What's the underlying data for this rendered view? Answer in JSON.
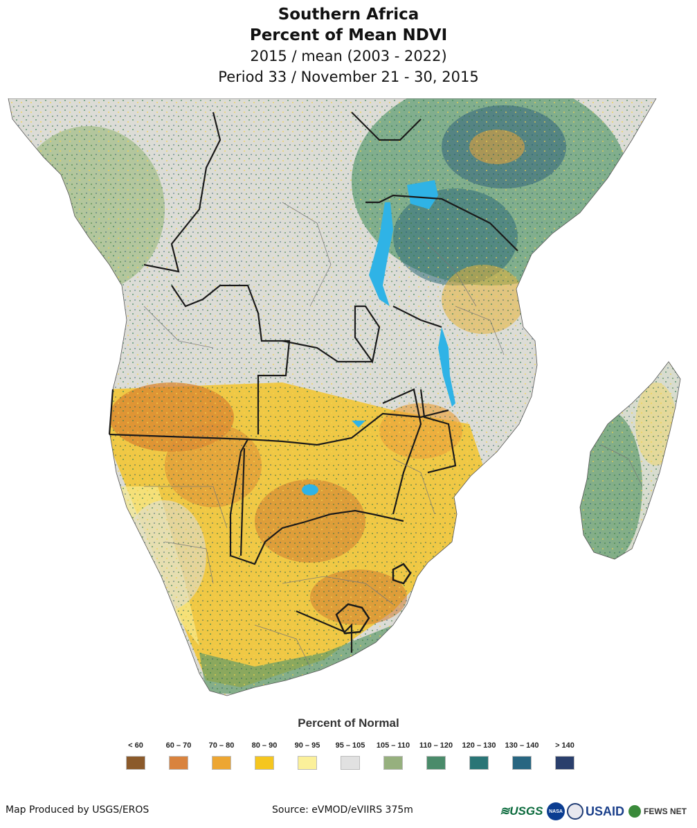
{
  "title": {
    "region": "Southern Africa",
    "product": "Percent of Mean NDVI",
    "comparison": "2015 / mean (2003 - 2022)",
    "period": "Period 33 / November 21 - 30, 2015"
  },
  "legend": {
    "title": "Percent of Normal",
    "classes": [
      {
        "label": "< 60",
        "color": "#8b5a2b"
      },
      {
        "label": "60 – 70",
        "color": "#d9833e"
      },
      {
        "label": "70 – 80",
        "color": "#eda632"
      },
      {
        "label": "80 – 90",
        "color": "#f5c61f"
      },
      {
        "label": "90 – 95",
        "color": "#fbf09a"
      },
      {
        "label": "95 – 105",
        "color": "#e1e1e1"
      },
      {
        "label": "105 – 110",
        "color": "#96b07e"
      },
      {
        "label": "110 – 120",
        "color": "#4a8b6a"
      },
      {
        "label": "120 – 130",
        "color": "#2a7576"
      },
      {
        "label": "130 – 140",
        "color": "#286681"
      },
      {
        "label": "> 140",
        "color": "#2a3f6c"
      }
    ]
  },
  "footer": {
    "producer": "Map Produced by USGS/EROS",
    "source": "Source: eVMOD/eVIIRS 375m"
  },
  "logos": {
    "usgs": "≋USGS",
    "nasa": "NASA",
    "usaid": "USAID",
    "fews": "FEWS NET"
  },
  "map_colors": {
    "water": "#2fb3e6",
    "border": "#1a1a1a"
  }
}
